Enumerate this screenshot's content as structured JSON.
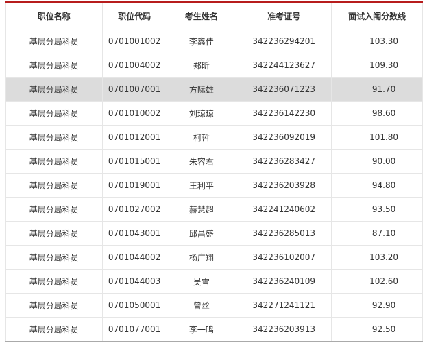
{
  "headers": [
    "职位名称",
    "职位代码",
    "考生姓名",
    "准考证号",
    "面试入闱分数线"
  ],
  "highlight_color": "#dcdcdc",
  "accent_color": "#b71c1c",
  "rows": [
    [
      "基层分局科员",
      "0701001002",
      "李鑫佳",
      "342236294201",
      "103.30"
    ],
    [
      "基层分局科员",
      "0701004002",
      "郑昕",
      "342244123627",
      "109.30"
    ],
    [
      "基层分局科员",
      "0701007001",
      "方际雄",
      "342236071223",
      "91.70"
    ],
    [
      "基层分局科员",
      "0701010002",
      "刘琼琼",
      "342236142230",
      "98.60"
    ],
    [
      "基层分局科员",
      "0701012001",
      "柯哲",
      "342236092019",
      "101.80"
    ],
    [
      "基层分局科员",
      "0701015001",
      "朱容君",
      "342236283427",
      "90.00"
    ],
    [
      "基层分局科员",
      "0701019001",
      "王利平",
      "342236203928",
      "94.80"
    ],
    [
      "基层分局科员",
      "0701027002",
      "赫慧超",
      "342241240602",
      "93.50"
    ],
    [
      "基层分局科员",
      "0701043001",
      "邱昌盛",
      "342236285013",
      "87.10"
    ],
    [
      "基层分局科员",
      "0701044002",
      "杨广翔",
      "342236102007",
      "103.20"
    ],
    [
      "基层分局科员",
      "0701044003",
      "吴雪",
      "342236240109",
      "102.60"
    ],
    [
      "基层分局科员",
      "0701050001",
      "曾丝",
      "342271241121",
      "92.90"
    ],
    [
      "基层分局科员",
      "0701077001",
      "李一鸣",
      "342236203913",
      "92.50"
    ]
  ],
  "highlighted_row": 2
}
